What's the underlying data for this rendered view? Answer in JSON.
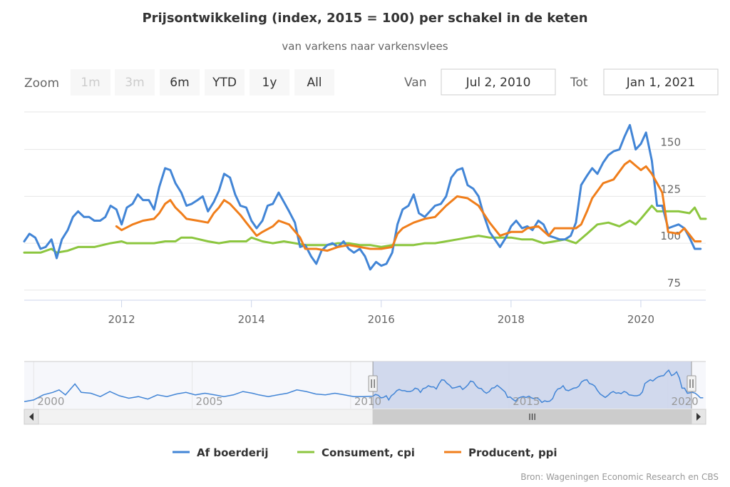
{
  "title": "Prijsontwikkeling (index, 2015 = 100) per schakel in de keten",
  "subtitle": "van varkens naar varkensvlees",
  "range_selector": {
    "zoom_label": "Zoom",
    "buttons": [
      {
        "label": "1m",
        "enabled": false
      },
      {
        "label": "3m",
        "enabled": false
      },
      {
        "label": "6m",
        "enabled": true
      },
      {
        "label": "YTD",
        "enabled": true
      },
      {
        "label": "1y",
        "enabled": true
      },
      {
        "label": "All",
        "enabled": true
      }
    ],
    "from_label": "Van",
    "from_value": "Jul 2, 2010",
    "to_label": "Tot",
    "to_value": "Jan 1, 2021"
  },
  "credits": "Bron: Wageningen Economic Research en CBS",
  "navigator": {
    "tick_labels": [
      "2000",
      "2005",
      "2010",
      "2015",
      "2020"
    ],
    "tick_years": [
      2000,
      2005,
      2010,
      2015,
      2020
    ],
    "range": [
      1999.5,
      2021.0
    ],
    "selected_range": [
      2010.5,
      2021.0
    ],
    "scrollbar_grip": "III"
  },
  "chart_data": {
    "type": "line",
    "title": "Prijsontwikkeling (index, 2015 = 100) per schakel in de keten",
    "subtitle": "van varkens naar varkensvlees",
    "x_range": [
      2010.5,
      2021.0
    ],
    "y_range": [
      70,
      170
    ],
    "x_tick_labels": [
      "2012",
      "2014",
      "2016",
      "2018",
      "2020"
    ],
    "x_tick_values": [
      2012,
      2014,
      2016,
      2018,
      2020
    ],
    "y_tick_labels": [
      "75",
      "100",
      "125",
      "150"
    ],
    "y_tick_values": [
      75,
      100,
      125,
      150
    ],
    "grid": "horizontal",
    "legend_position": "bottom-center",
    "series": [
      {
        "name": "Af boerderij",
        "color": "#4285d6",
        "points": [
          [
            2010.5,
            101
          ],
          [
            2010.58,
            105
          ],
          [
            2010.67,
            103
          ],
          [
            2010.75,
            97
          ],
          [
            2010.83,
            98
          ],
          [
            2010.92,
            102
          ],
          [
            2011.0,
            92
          ],
          [
            2011.08,
            102
          ],
          [
            2011.17,
            107
          ],
          [
            2011.25,
            114
          ],
          [
            2011.33,
            117
          ],
          [
            2011.42,
            114
          ],
          [
            2011.5,
            114
          ],
          [
            2011.58,
            112
          ],
          [
            2011.67,
            112
          ],
          [
            2011.75,
            114
          ],
          [
            2011.83,
            120
          ],
          [
            2011.92,
            118
          ],
          [
            2012.0,
            110
          ],
          [
            2012.08,
            119
          ],
          [
            2012.17,
            121
          ],
          [
            2012.25,
            126
          ],
          [
            2012.33,
            123
          ],
          [
            2012.42,
            123
          ],
          [
            2012.5,
            118
          ],
          [
            2012.58,
            130
          ],
          [
            2012.67,
            140
          ],
          [
            2012.75,
            139
          ],
          [
            2012.83,
            132
          ],
          [
            2012.92,
            127
          ],
          [
            2013.0,
            120
          ],
          [
            2013.08,
            121
          ],
          [
            2013.17,
            123
          ],
          [
            2013.25,
            125
          ],
          [
            2013.33,
            117
          ],
          [
            2013.42,
            122
          ],
          [
            2013.5,
            128
          ],
          [
            2013.58,
            137
          ],
          [
            2013.67,
            135
          ],
          [
            2013.75,
            126
          ],
          [
            2013.83,
            120
          ],
          [
            2013.92,
            119
          ],
          [
            2014.0,
            112
          ],
          [
            2014.08,
            108
          ],
          [
            2014.17,
            112
          ],
          [
            2014.25,
            120
          ],
          [
            2014.33,
            121
          ],
          [
            2014.42,
            127
          ],
          [
            2014.5,
            122
          ],
          [
            2014.58,
            117
          ],
          [
            2014.67,
            111
          ],
          [
            2014.75,
            98
          ],
          [
            2014.83,
            99
          ],
          [
            2014.92,
            93
          ],
          [
            2015.0,
            89
          ],
          [
            2015.08,
            96
          ],
          [
            2015.17,
            99
          ],
          [
            2015.25,
            100
          ],
          [
            2015.33,
            98
          ],
          [
            2015.42,
            101
          ],
          [
            2015.5,
            97
          ],
          [
            2015.58,
            95
          ],
          [
            2015.67,
            97
          ],
          [
            2015.75,
            93
          ],
          [
            2015.83,
            86
          ],
          [
            2015.92,
            90
          ],
          [
            2016.0,
            88
          ],
          [
            2016.08,
            89
          ],
          [
            2016.17,
            95
          ],
          [
            2016.25,
            110
          ],
          [
            2016.33,
            118
          ],
          [
            2016.42,
            120
          ],
          [
            2016.5,
            126
          ],
          [
            2016.58,
            116
          ],
          [
            2016.67,
            114
          ],
          [
            2016.75,
            117
          ],
          [
            2016.83,
            120
          ],
          [
            2016.92,
            121
          ],
          [
            2017.0,
            125
          ],
          [
            2017.08,
            135
          ],
          [
            2017.17,
            139
          ],
          [
            2017.25,
            140
          ],
          [
            2017.33,
            131
          ],
          [
            2017.42,
            129
          ],
          [
            2017.5,
            125
          ],
          [
            2017.58,
            115
          ],
          [
            2017.67,
            106
          ],
          [
            2017.75,
            102
          ],
          [
            2017.83,
            98
          ],
          [
            2017.92,
            103
          ],
          [
            2018.0,
            109
          ],
          [
            2018.08,
            112
          ],
          [
            2018.17,
            108
          ],
          [
            2018.25,
            109
          ],
          [
            2018.33,
            107
          ],
          [
            2018.42,
            112
          ],
          [
            2018.5,
            110
          ],
          [
            2018.58,
            104
          ],
          [
            2018.67,
            103
          ],
          [
            2018.75,
            102
          ],
          [
            2018.83,
            102
          ],
          [
            2018.92,
            104
          ],
          [
            2019.0,
            111
          ],
          [
            2019.08,
            131
          ],
          [
            2019.17,
            136
          ],
          [
            2019.25,
            140
          ],
          [
            2019.33,
            137
          ],
          [
            2019.42,
            143
          ],
          [
            2019.5,
            147
          ],
          [
            2019.58,
            149
          ],
          [
            2019.67,
            150
          ],
          [
            2019.75,
            157
          ],
          [
            2019.83,
            163
          ],
          [
            2019.92,
            150
          ],
          [
            2020.0,
            153
          ],
          [
            2020.08,
            159
          ],
          [
            2020.17,
            144
          ],
          [
            2020.25,
            120
          ],
          [
            2020.33,
            120
          ],
          [
            2020.42,
            108
          ],
          [
            2020.5,
            109
          ],
          [
            2020.58,
            110
          ],
          [
            2020.67,
            108
          ],
          [
            2020.75,
            103
          ],
          [
            2020.83,
            97
          ],
          [
            2020.92,
            97
          ]
        ]
      },
      {
        "name": "Consument, cpi",
        "color": "#8cc63f",
        "points": [
          [
            2010.5,
            95
          ],
          [
            2010.75,
            95
          ],
          [
            2010.92,
            97
          ],
          [
            2011.0,
            95
          ],
          [
            2011.17,
            96
          ],
          [
            2011.33,
            98
          ],
          [
            2011.58,
            98
          ],
          [
            2011.83,
            100
          ],
          [
            2012.0,
            101
          ],
          [
            2012.08,
            100
          ],
          [
            2012.33,
            100
          ],
          [
            2012.5,
            100
          ],
          [
            2012.67,
            101
          ],
          [
            2012.83,
            101
          ],
          [
            2012.92,
            103
          ],
          [
            2013.08,
            103
          ],
          [
            2013.33,
            101
          ],
          [
            2013.5,
            100
          ],
          [
            2013.67,
            101
          ],
          [
            2013.92,
            101
          ],
          [
            2014.0,
            103
          ],
          [
            2014.17,
            101
          ],
          [
            2014.33,
            100
          ],
          [
            2014.5,
            101
          ],
          [
            2014.67,
            100
          ],
          [
            2014.83,
            99
          ],
          [
            2015.0,
            99
          ],
          [
            2015.17,
            99
          ],
          [
            2015.33,
            100
          ],
          [
            2015.5,
            100
          ],
          [
            2015.67,
            99
          ],
          [
            2015.83,
            99
          ],
          [
            2016.0,
            98
          ],
          [
            2016.17,
            99
          ],
          [
            2016.33,
            99
          ],
          [
            2016.5,
            99
          ],
          [
            2016.67,
            100
          ],
          [
            2016.83,
            100
          ],
          [
            2017.0,
            101
          ],
          [
            2017.17,
            102
          ],
          [
            2017.33,
            103
          ],
          [
            2017.5,
            104
          ],
          [
            2017.67,
            103
          ],
          [
            2017.83,
            103
          ],
          [
            2018.0,
            103
          ],
          [
            2018.17,
            102
          ],
          [
            2018.33,
            102
          ],
          [
            2018.5,
            100
          ],
          [
            2018.67,
            101
          ],
          [
            2018.83,
            102
          ],
          [
            2019.0,
            100
          ],
          [
            2019.17,
            105
          ],
          [
            2019.33,
            110
          ],
          [
            2019.5,
            111
          ],
          [
            2019.67,
            109
          ],
          [
            2019.83,
            112
          ],
          [
            2019.92,
            110
          ],
          [
            2020.0,
            113
          ],
          [
            2020.17,
            120
          ],
          [
            2020.25,
            117
          ],
          [
            2020.42,
            117
          ],
          [
            2020.58,
            117
          ],
          [
            2020.75,
            116
          ],
          [
            2020.83,
            119
          ],
          [
            2020.92,
            113
          ],
          [
            2021.0,
            113
          ]
        ]
      },
      {
        "name": "Producent, ppi",
        "color": "#f07e1b",
        "points": [
          [
            2011.92,
            109
          ],
          [
            2012.0,
            107
          ],
          [
            2012.17,
            110
          ],
          [
            2012.33,
            112
          ],
          [
            2012.5,
            113
          ],
          [
            2012.58,
            116
          ],
          [
            2012.67,
            121
          ],
          [
            2012.75,
            123
          ],
          [
            2012.83,
            119
          ],
          [
            2012.92,
            116
          ],
          [
            2013.0,
            113
          ],
          [
            2013.17,
            112
          ],
          [
            2013.33,
            111
          ],
          [
            2013.42,
            116
          ],
          [
            2013.5,
            119
          ],
          [
            2013.58,
            123
          ],
          [
            2013.67,
            121
          ],
          [
            2013.83,
            115
          ],
          [
            2013.92,
            111
          ],
          [
            2014.08,
            104
          ],
          [
            2014.17,
            106
          ],
          [
            2014.33,
            109
          ],
          [
            2014.42,
            112
          ],
          [
            2014.58,
            110
          ],
          [
            2014.75,
            103
          ],
          [
            2014.83,
            97
          ],
          [
            2015.0,
            97
          ],
          [
            2015.17,
            96
          ],
          [
            2015.33,
            98
          ],
          [
            2015.5,
            99
          ],
          [
            2015.67,
            98
          ],
          [
            2015.83,
            97
          ],
          [
            2016.0,
            97
          ],
          [
            2016.17,
            98
          ],
          [
            2016.25,
            105
          ],
          [
            2016.33,
            108
          ],
          [
            2016.5,
            111
          ],
          [
            2016.67,
            113
          ],
          [
            2016.83,
            114
          ],
          [
            2017.0,
            120
          ],
          [
            2017.17,
            125
          ],
          [
            2017.33,
            124
          ],
          [
            2017.5,
            120
          ],
          [
            2017.67,
            111
          ],
          [
            2017.83,
            104
          ],
          [
            2018.0,
            106
          ],
          [
            2018.17,
            106
          ],
          [
            2018.25,
            108
          ],
          [
            2018.42,
            109
          ],
          [
            2018.58,
            104
          ],
          [
            2018.67,
            108
          ],
          [
            2018.83,
            108
          ],
          [
            2019.0,
            108
          ],
          [
            2019.08,
            110
          ],
          [
            2019.17,
            117
          ],
          [
            2019.25,
            124
          ],
          [
            2019.42,
            132
          ],
          [
            2019.58,
            134
          ],
          [
            2019.75,
            142
          ],
          [
            2019.83,
            144
          ],
          [
            2020.0,
            139
          ],
          [
            2020.08,
            141
          ],
          [
            2020.17,
            137
          ],
          [
            2020.33,
            127
          ],
          [
            2020.42,
            106
          ],
          [
            2020.58,
            105
          ],
          [
            2020.67,
            108
          ],
          [
            2020.83,
            101
          ],
          [
            2020.92,
            101
          ]
        ]
      }
    ]
  }
}
